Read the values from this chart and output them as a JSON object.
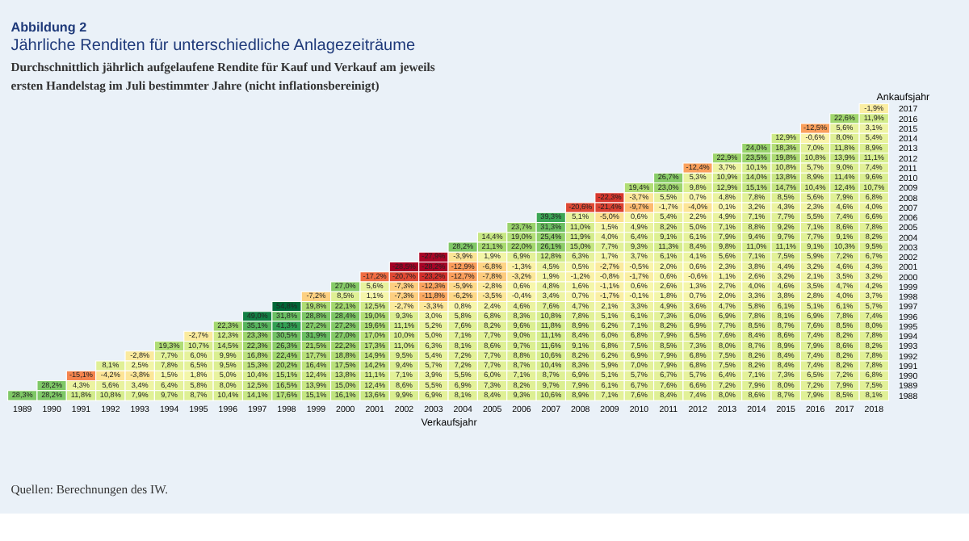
{
  "chart_data": {
    "type": "heatmap",
    "title": "Abbildung 2",
    "subtitle": "Jährliche Renditen für unterschiedliche Anlagezeiträume",
    "xlabel": "Verkaufsjahr",
    "ylabel": "Ankaufsjahr",
    "annotations": [
      "Durchschnittlich jährlich aufgelaufene Rendite für Kauf und Verkauf am jeweils",
      "ersten Handelstag im Juli bestimmter Jahre (nicht inflationsbereinigt)",
      "Quellen: Berechnungen des IW."
    ],
    "categories": [
      "1989",
      "1990",
      "1991",
      "1992",
      "1993",
      "1994",
      "1995",
      "1996",
      "1997",
      "1998",
      "1999",
      "2000",
      "2001",
      "2002",
      "2003",
      "2004",
      "2005",
      "2006",
      "2007",
      "2008",
      "2009",
      "2010",
      "2011",
      "2012",
      "2013",
      "2014",
      "2015",
      "2016",
      "2017",
      "2018"
    ],
    "y_categories": [
      "2017",
      "2016",
      "2015",
      "2014",
      "2013",
      "2012",
      "2011",
      "2010",
      "2009",
      "2008",
      "2007",
      "2006",
      "2005",
      "2004",
      "2003",
      "2002",
      "2001",
      "2000",
      "1999",
      "1998",
      "1997",
      "1996",
      "1995",
      "1994",
      "1993",
      "1992",
      "1991",
      "1990",
      "1989",
      "1988"
    ],
    "cells": [
      [
        null,
        null,
        null,
        null,
        null,
        null,
        null,
        null,
        null,
        null,
        null,
        null,
        null,
        null,
        null,
        null,
        null,
        null,
        null,
        null,
        null,
        null,
        null,
        null,
        null,
        null,
        null,
        null,
        null,
        -1.9
      ],
      [
        null,
        null,
        null,
        null,
        null,
        null,
        null,
        null,
        null,
        null,
        null,
        null,
        null,
        null,
        null,
        null,
        null,
        null,
        null,
        null,
        null,
        null,
        null,
        null,
        null,
        null,
        null,
        null,
        22.6,
        11.9
      ],
      [
        null,
        null,
        null,
        null,
        null,
        null,
        null,
        null,
        null,
        null,
        null,
        null,
        null,
        null,
        null,
        null,
        null,
        null,
        null,
        null,
        null,
        null,
        null,
        null,
        null,
        null,
        null,
        -12.5,
        5.6,
        3.1
      ],
      [
        null,
        null,
        null,
        null,
        null,
        null,
        null,
        null,
        null,
        null,
        null,
        null,
        null,
        null,
        null,
        null,
        null,
        null,
        null,
        null,
        null,
        null,
        null,
        null,
        null,
        null,
        12.9,
        -0.6,
        8.0,
        5.4
      ],
      [
        null,
        null,
        null,
        null,
        null,
        null,
        null,
        null,
        null,
        null,
        null,
        null,
        null,
        null,
        null,
        null,
        null,
        null,
        null,
        null,
        null,
        null,
        null,
        null,
        null,
        24.0,
        18.3,
        7.0,
        11.8,
        8.9
      ],
      [
        null,
        null,
        null,
        null,
        null,
        null,
        null,
        null,
        null,
        null,
        null,
        null,
        null,
        null,
        null,
        null,
        null,
        null,
        null,
        null,
        null,
        null,
        null,
        null,
        22.9,
        23.5,
        19.8,
        10.8,
        13.9,
        11.1
      ],
      [
        null,
        null,
        null,
        null,
        null,
        null,
        null,
        null,
        null,
        null,
        null,
        null,
        null,
        null,
        null,
        null,
        null,
        null,
        null,
        null,
        null,
        null,
        null,
        -12.4,
        3.7,
        10.1,
        10.8,
        5.7,
        9.0,
        7.4
      ],
      [
        null,
        null,
        null,
        null,
        null,
        null,
        null,
        null,
        null,
        null,
        null,
        null,
        null,
        null,
        null,
        null,
        null,
        null,
        null,
        null,
        null,
        null,
        26.7,
        5.3,
        10.9,
        14.0,
        13.8,
        8.9,
        11.4,
        9.6
      ],
      [
        null,
        null,
        null,
        null,
        null,
        null,
        null,
        null,
        null,
        null,
        null,
        null,
        null,
        null,
        null,
        null,
        null,
        null,
        null,
        null,
        null,
        19.4,
        23.0,
        9.8,
        12.9,
        15.1,
        14.7,
        10.4,
        12.4,
        10.7
      ],
      [
        null,
        null,
        null,
        null,
        null,
        null,
        null,
        null,
        null,
        null,
        null,
        null,
        null,
        null,
        null,
        null,
        null,
        null,
        null,
        null,
        -22.3,
        -3.7,
        5.5,
        0.7,
        4.8,
        7.8,
        8.5,
        5.6,
        7.9,
        6.8
      ],
      [
        null,
        null,
        null,
        null,
        null,
        null,
        null,
        null,
        null,
        null,
        null,
        null,
        null,
        null,
        null,
        null,
        null,
        null,
        null,
        -20.6,
        -21.4,
        -9.7,
        -1.7,
        -4.0,
        0.1,
        3.2,
        4.3,
        2.3,
        4.6,
        4.0
      ],
      [
        null,
        null,
        null,
        null,
        null,
        null,
        null,
        null,
        null,
        null,
        null,
        null,
        null,
        null,
        null,
        null,
        null,
        null,
        39.3,
        5.1,
        -5.0,
        0.6,
        5.4,
        2.2,
        4.9,
        7.1,
        7.7,
        5.5,
        7.4,
        6.6
      ],
      [
        null,
        null,
        null,
        null,
        null,
        null,
        null,
        null,
        null,
        null,
        null,
        null,
        null,
        null,
        null,
        null,
        null,
        23.7,
        31.3,
        11.0,
        1.5,
        4.9,
        8.2,
        5.0,
        7.1,
        8.8,
        9.2,
        7.1,
        8.6,
        7.8
      ],
      [
        null,
        null,
        null,
        null,
        null,
        null,
        null,
        null,
        null,
        null,
        null,
        null,
        null,
        null,
        null,
        null,
        14.4,
        19.0,
        25.4,
        11.9,
        4.0,
        6.4,
        9.1,
        6.1,
        7.9,
        9.4,
        9.7,
        7.7,
        9.1,
        8.2
      ],
      [
        null,
        null,
        null,
        null,
        null,
        null,
        null,
        null,
        null,
        null,
        null,
        null,
        null,
        null,
        null,
        28.2,
        21.1,
        22.0,
        26.1,
        15.0,
        7.7,
        9.3,
        11.3,
        8.4,
        9.8,
        11.0,
        11.1,
        9.1,
        10.3,
        9.5
      ],
      [
        null,
        null,
        null,
        null,
        null,
        null,
        null,
        null,
        null,
        null,
        null,
        null,
        null,
        null,
        -27.9,
        -3.9,
        1.9,
        6.9,
        12.8,
        6.3,
        1.7,
        3.7,
        6.1,
        4.1,
        5.6,
        7.1,
        7.5,
        5.9,
        7.2,
        6.7
      ],
      [
        null,
        null,
        null,
        null,
        null,
        null,
        null,
        null,
        null,
        null,
        null,
        null,
        null,
        -28.5,
        -28.2,
        -12.9,
        -6.8,
        -1.3,
        4.5,
        0.5,
        -2.7,
        -0.5,
        2.0,
        0.6,
        2.3,
        3.8,
        4.4,
        3.2,
        4.6,
        4.3
      ],
      [
        null,
        null,
        null,
        null,
        null,
        null,
        null,
        null,
        null,
        null,
        null,
        null,
        -17.2,
        -20.7,
        -23.2,
        -12.7,
        -7.8,
        -3.2,
        1.9,
        -1.2,
        -0.8,
        -1.7,
        0.6,
        -0.6,
        1.1,
        2.6,
        3.2,
        2.1,
        3.5,
        3.2
      ],
      [
        null,
        null,
        null,
        null,
        null,
        null,
        null,
        null,
        null,
        null,
        null,
        27.0,
        5.6,
        -7.3,
        -12.3,
        -5.9,
        -2.8,
        0.6,
        4.8,
        1.6,
        -1.1,
        0.6,
        2.6,
        1.3,
        2.7,
        4.0,
        4.6,
        3.5,
        4.7,
        4.2
      ],
      [
        null,
        null,
        null,
        null,
        null,
        null,
        null,
        null,
        null,
        null,
        -7.2,
        8.5,
        1.1,
        -7.3,
        -11.8,
        -6.2,
        -3.5,
        -0.4,
        3.4,
        0.7,
        -1.7,
        -0.1,
        1.8,
        0.7,
        2.0,
        3.3,
        3.8,
        2.8,
        4.0,
        3.7
      ],
      [
        null,
        null,
        null,
        null,
        null,
        null,
        null,
        null,
        null,
        54.8,
        19.8,
        22.1,
        12.5,
        -2.7,
        -3.3,
        0.8,
        2.4,
        4.6,
        7.6,
        4.7,
        2.1,
        3.3,
        4.9,
        3.6,
        4.7,
        5.8,
        6.1,
        5.1,
        6.1,
        5.7
      ],
      [
        null,
        null,
        null,
        null,
        null,
        null,
        null,
        null,
        49.0,
        31.8,
        28.8,
        28.4,
        19.0,
        9.3,
        3.0,
        5.8,
        6.8,
        8.3,
        10.8,
        7.8,
        5.1,
        6.1,
        7.3,
        6.0,
        6.9,
        7.8,
        8.1,
        6.9,
        7.8,
        7.4
      ],
      [
        null,
        null,
        null,
        null,
        null,
        null,
        null,
        22.3,
        35.1,
        41.3,
        27.2,
        27.2,
        19.6,
        11.1,
        5.2,
        7.6,
        8.2,
        9.6,
        11.8,
        8.9,
        6.2,
        7.1,
        8.2,
        6.9,
        7.7,
        8.5,
        8.7,
        7.6,
        8.5,
        8.0
      ],
      [
        null,
        null,
        null,
        null,
        null,
        null,
        -2.7,
        12.3,
        23.3,
        30.5,
        31.9,
        27.0,
        17.0,
        10.0,
        5.0,
        7.1,
        7.7,
        9.0,
        11.1,
        8.4,
        6.0,
        6.8,
        7.9,
        6.5,
        7.6,
        8.4,
        8.6,
        7.4,
        8.2,
        7.8
      ],
      [
        null,
        null,
        null,
        null,
        null,
        19.3,
        10.7,
        14.5,
        22.3,
        26.3,
        21.5,
        22.2,
        17.3,
        11.0,
        6.3,
        8.1,
        8.6,
        9.7,
        11.6,
        9.1,
        6.8,
        7.5,
        8.5,
        7.3,
        8.0,
        8.7,
        8.9,
        7.9,
        8.6,
        8.2
      ],
      [
        null,
        null,
        null,
        null,
        -2.8,
        7.7,
        6.0,
        9.9,
        16.8,
        22.4,
        17.7,
        18.8,
        14.9,
        9.5,
        5.4,
        7.2,
        7.7,
        8.8,
        10.6,
        8.2,
        6.2,
        6.9,
        7.9,
        6.8,
        7.5,
        8.2,
        8.4,
        7.4,
        8.2,
        7.8
      ],
      [
        null,
        null,
        null,
        8.1,
        2.5,
        7.8,
        6.5,
        9.5,
        15.3,
        20.2,
        16.4,
        17.5,
        14.2,
        9.4,
        5.7,
        7.2,
        7.7,
        8.7,
        10.4,
        8.3,
        5.9,
        7.0,
        7.9,
        6.8,
        7.5,
        8.2,
        8.4,
        7.4,
        8.2,
        7.8
      ],
      [
        null,
        null,
        -15.1,
        -4.2,
        -3.8,
        1.5,
        1.8,
        5.0,
        10.4,
        15.1,
        12.4,
        13.8,
        11.1,
        7.1,
        3.9,
        5.5,
        6.0,
        7.1,
        8.7,
        6.9,
        5.1,
        5.7,
        6.7,
        5.7,
        6.4,
        7.1,
        7.3,
        6.5,
        7.2,
        6.8
      ],
      [
        null,
        28.2,
        4.3,
        5.6,
        3.4,
        6.4,
        5.8,
        8.0,
        12.5,
        16.5,
        13.9,
        15.0,
        12.4,
        8.6,
        5.5,
        6.9,
        7.3,
        8.2,
        9.7,
        7.9,
        6.1,
        6.7,
        7.6,
        6.6,
        7.2,
        7.9,
        8.0,
        7.2,
        7.9,
        7.5
      ],
      [
        28.3,
        28.2,
        11.8,
        10.8,
        7.9,
        9.7,
        8.7,
        10.4,
        14.1,
        17.6,
        15.1,
        16.1,
        13.6,
        9.9,
        6.9,
        8.1,
        8.4,
        9.3,
        10.6,
        8.9,
        7.1,
        7.6,
        8.4,
        7.4,
        8.0,
        8.6,
        8.7,
        7.9,
        8.5,
        8.1
      ]
    ],
    "cell_labels": [
      [
        null,
        null,
        null,
        null,
        null,
        null,
        null,
        null,
        null,
        null,
        null,
        null,
        null,
        null,
        null,
        null,
        null,
        null,
        null,
        null,
        null,
        null,
        null,
        null,
        null,
        null,
        null,
        null,
        null,
        "-1,9%"
      ],
      [
        null,
        null,
        null,
        null,
        null,
        null,
        null,
        null,
        null,
        null,
        null,
        null,
        null,
        null,
        null,
        null,
        null,
        null,
        null,
        null,
        null,
        null,
        null,
        null,
        null,
        null,
        null,
        null,
        "22,6%",
        "11,9%"
      ],
      [
        null,
        null,
        null,
        null,
        null,
        null,
        null,
        null,
        null,
        null,
        null,
        null,
        null,
        null,
        null,
        null,
        null,
        null,
        null,
        null,
        null,
        null,
        null,
        null,
        null,
        null,
        null,
        "-12,5%",
        "5,6%",
        "3,1%"
      ],
      [
        null,
        null,
        null,
        null,
        null,
        null,
        null,
        null,
        null,
        null,
        null,
        null,
        null,
        null,
        null,
        null,
        null,
        null,
        null,
        null,
        null,
        null,
        null,
        null,
        null,
        null,
        "12,9%",
        "-0,6%",
        "8,0%",
        "5,4%"
      ],
      [
        null,
        null,
        null,
        null,
        null,
        null,
        null,
        null,
        null,
        null,
        null,
        null,
        null,
        null,
        null,
        null,
        null,
        null,
        null,
        null,
        null,
        null,
        null,
        null,
        null,
        "24,0%",
        "18,3%",
        "7,0%",
        "11,8%",
        "8,9%"
      ],
      [
        null,
        null,
        null,
        null,
        null,
        null,
        null,
        null,
        null,
        null,
        null,
        null,
        null,
        null,
        null,
        null,
        null,
        null,
        null,
        null,
        null,
        null,
        null,
        null,
        "22,9%",
        "23,5%",
        "19,8%",
        "10,8%",
        "13,9%",
        "11,1%"
      ],
      [
        null,
        null,
        null,
        null,
        null,
        null,
        null,
        null,
        null,
        null,
        null,
        null,
        null,
        null,
        null,
        null,
        null,
        null,
        null,
        null,
        null,
        null,
        null,
        "-12,4%",
        "3,7%",
        "10,1%",
        "10,8%",
        "5,7%",
        "9,0%",
        "7,4%"
      ],
      [
        null,
        null,
        null,
        null,
        null,
        null,
        null,
        null,
        null,
        null,
        null,
        null,
        null,
        null,
        null,
        null,
        null,
        null,
        null,
        null,
        null,
        null,
        "26,7%",
        "5,3%",
        "10,9%",
        "14,0%",
        "13,8%",
        "8,9%",
        "11,4%",
        "9,6%"
      ],
      [
        null,
        null,
        null,
        null,
        null,
        null,
        null,
        null,
        null,
        null,
        null,
        null,
        null,
        null,
        null,
        null,
        null,
        null,
        null,
        null,
        null,
        "19,4%",
        "23,0%",
        "9,8%",
        "12,9%",
        "15,1%",
        "14,7%",
        "10,4%",
        "12,4%",
        "10,7%"
      ],
      [
        null,
        null,
        null,
        null,
        null,
        null,
        null,
        null,
        null,
        null,
        null,
        null,
        null,
        null,
        null,
        null,
        null,
        null,
        null,
        null,
        "-22,3%",
        "-3,7%",
        "5,5%",
        "0,7%",
        "4,8%",
        "7,8%",
        "8,5%",
        "5,6%",
        "7,9%",
        "6,8%"
      ],
      [
        null,
        null,
        null,
        null,
        null,
        null,
        null,
        null,
        null,
        null,
        null,
        null,
        null,
        null,
        null,
        null,
        null,
        null,
        null,
        "-20,6%",
        "-21,4%",
        "-9,7%",
        "-1,7%",
        "-4,0%",
        "0,1%",
        "3,2%",
        "4,3%",
        "2,3%",
        "4,6%",
        "4,0%"
      ],
      [
        null,
        null,
        null,
        null,
        null,
        null,
        null,
        null,
        null,
        null,
        null,
        null,
        null,
        null,
        null,
        null,
        null,
        null,
        "39,3%",
        "5,1%",
        "-5,0%",
        "0,6%",
        "5,4%",
        "2,2%",
        "4,9%",
        "7,1%",
        "7,7%",
        "5,5%",
        "7,4%",
        "6,6%"
      ],
      [
        null,
        null,
        null,
        null,
        null,
        null,
        null,
        null,
        null,
        null,
        null,
        null,
        null,
        null,
        null,
        null,
        null,
        "23,7%",
        "31,3%",
        "11,0%",
        "1,5%",
        "4,9%",
        "8,2%",
        "5,0%",
        "7,1%",
        "8,8%",
        "9,2%",
        "7,1%",
        "8,6%",
        "7,8%"
      ],
      [
        null,
        null,
        null,
        null,
        null,
        null,
        null,
        null,
        null,
        null,
        null,
        null,
        null,
        null,
        null,
        null,
        "14,4%",
        "19,0%",
        "25,4%",
        "11,9%",
        "4,0%",
        "6,4%",
        "9,1%",
        "6,1%",
        "7,9%",
        "9,4%",
        "9,7%",
        "7,7%",
        "9,1%",
        "8,2%"
      ],
      [
        null,
        null,
        null,
        null,
        null,
        null,
        null,
        null,
        null,
        null,
        null,
        null,
        null,
        null,
        null,
        "28,2%",
        "21,1%",
        "22,0%",
        "26,1%",
        "15,0%",
        "7,7%",
        "9,3%",
        "11,3%",
        "8,4%",
        "9,8%",
        "11,0%",
        "11,1%",
        "9,1%",
        "10,3%",
        "9,5%"
      ],
      [
        null,
        null,
        null,
        null,
        null,
        null,
        null,
        null,
        null,
        null,
        null,
        null,
        null,
        null,
        "-27,9%",
        "-3,9%",
        "1,9%",
        "6,9%",
        "12,8%",
        "6,3%",
        "1,7%",
        "3,7%",
        "6,1%",
        "4,1%",
        "5,6%",
        "7,1%",
        "7,5%",
        "5,9%",
        "7,2%",
        "6,7%"
      ],
      [
        null,
        null,
        null,
        null,
        null,
        null,
        null,
        null,
        null,
        null,
        null,
        null,
        null,
        "-28,5%",
        "-28,2%",
        "-12,9%",
        "-6,8%",
        "-1,3%",
        "4,5%",
        "0,5%",
        "-2,7%",
        "-0,5%",
        "2,0%",
        "0,6%",
        "2,3%",
        "3,8%",
        "4,4%",
        "3,2%",
        "4,6%",
        "4,3%"
      ],
      [
        null,
        null,
        null,
        null,
        null,
        null,
        null,
        null,
        null,
        null,
        null,
        null,
        "-17,2%",
        "-20,7%",
        "-23,2%",
        "-12,7%",
        "-7,8%",
        "-3,2%",
        "1,9%",
        "-1,2%",
        "-0,8%",
        "-1,7%",
        "0,6%",
        "-0,6%",
        "1,1%",
        "2,6%",
        "3,2%",
        "2,1%",
        "3,5%",
        "3,2%"
      ],
      [
        null,
        null,
        null,
        null,
        null,
        null,
        null,
        null,
        null,
        null,
        null,
        "27,0%",
        "5,6%",
        "-7,3%",
        "-12,3%",
        "-5,9%",
        "-2,8%",
        "0,6%",
        "4,8%",
        "1,6%",
        "-1,1%",
        "0,6%",
        "2,6%",
        "1,3%",
        "2,7%",
        "4,0%",
        "4,6%",
        "3,5%",
        "4,7%",
        "4,2%"
      ],
      [
        null,
        null,
        null,
        null,
        null,
        null,
        null,
        null,
        null,
        null,
        "-7,2%",
        "8,5%",
        "1,1%",
        "-7,3%",
        "-11,8%",
        "-6,2%",
        "-3,5%",
        "-0,4%",
        "3,4%",
        "0,7%",
        "-1,7%",
        "-0,1%",
        "1,8%",
        "0,7%",
        "2,0%",
        "3,3%",
        "3,8%",
        "2,8%",
        "4,0%",
        "3,7%"
      ],
      [
        null,
        null,
        null,
        null,
        null,
        null,
        null,
        null,
        null,
        "54,8%",
        "19,8%",
        "22,1%",
        "12,5%",
        "-2,7%",
        "-3,3%",
        "0,8%",
        "2,4%",
        "4,6%",
        "7,6%",
        "4,7%",
        "2,1%",
        "3,3%",
        "4,9%",
        "3,6%",
        "4,7%",
        "5,8%",
        "6,1%",
        "5,1%",
        "6,1%",
        "5,7%"
      ],
      [
        null,
        null,
        null,
        null,
        null,
        null,
        null,
        null,
        "49,0%",
        "31,8%",
        "28,8%",
        "28,4%",
        "19,0%",
        "9,3%",
        "3,0%",
        "5,8%",
        "6,8%",
        "8,3%",
        "10,8%",
        "7,8%",
        "5,1%",
        "6,1%",
        "7,3%",
        "6,0%",
        "6,9%",
        "7,8%",
        "8,1%",
        "6,9%",
        "7,8%",
        "7,4%"
      ],
      [
        null,
        null,
        null,
        null,
        null,
        null,
        null,
        "22,3%",
        "35,1%",
        "41,3%",
        "27,2%",
        "27,2%",
        "19,6%",
        "11,1%",
        "5,2%",
        "7,6%",
        "8,2%",
        "9,6%",
        "11,8%",
        "8,9%",
        "6,2%",
        "7,1%",
        "8,2%",
        "6,9%",
        "7,7%",
        "8,5%",
        "8,7%",
        "7,6%",
        "8,5%",
        "8,0%"
      ],
      [
        null,
        null,
        null,
        null,
        null,
        null,
        "-2,7%",
        "12,3%",
        "23,3%",
        "30,5%",
        "31,9%",
        "27,0%",
        "17,0%",
        "10,0%",
        "5,0%",
        "7,1%",
        "7,7%",
        "9,0%",
        "11,1%",
        "8,4%",
        "6,0%",
        "6,8%",
        "7,9%",
        "6,5%",
        "7,6%",
        "8,4%",
        "8,6%",
        "7,4%",
        "8,2%",
        "7,8%"
      ],
      [
        null,
        null,
        null,
        null,
        null,
        "19,3%",
        "10,7%",
        "14,5%",
        "22,3%",
        "26,3%",
        "21,5%",
        "22,2%",
        "17,3%",
        "11,0%",
        "6,3%",
        "8,1%",
        "8,6%",
        "9,7%",
        "11,6%",
        "9,1%",
        "6,8%",
        "7,5%",
        "8,5%",
        "7,3%",
        "8,0%",
        "8,7%",
        "8,9%",
        "7,9%",
        "8,6%",
        "8,2%"
      ],
      [
        null,
        null,
        null,
        null,
        "-2,8%",
        "7,7%",
        "6,0%",
        "9,9%",
        "16,8%",
        "22,4%",
        "17,7%",
        "18,8%",
        "14,9%",
        "9,5%",
        "5,4%",
        "7,2%",
        "7,7%",
        "8,8%",
        "10,6%",
        "8,2%",
        "6,2%",
        "6,9%",
        "7,9%",
        "6,8%",
        "7,5%",
        "8,2%",
        "8,4%",
        "7,4%",
        "8,2%",
        "7,8%"
      ],
      [
        null,
        null,
        null,
        "8,1%",
        "2,5%",
        "7,8%",
        "6,5%",
        "9,5%",
        "15,3%",
        "20,2%",
        "16,4%",
        "17,5%",
        "14,2%",
        "9,4%",
        "5,7%",
        "7,2%",
        "7,7%",
        "8,7%",
        "10,4%",
        "8,3%",
        "5,9%",
        "7,0%",
        "7,9%",
        "6,8%",
        "7,5%",
        "8,2%",
        "8,4%",
        "7,4%",
        "8,2%",
        "7,8%"
      ],
      [
        null,
        null,
        "-15,1%",
        "-4,2%",
        "-3,8%",
        "1,5%",
        "1,8%",
        "5,0%",
        "10,4%",
        "15,1%",
        "12,4%",
        "13,8%",
        "11,1%",
        "7,1%",
        "3,9%",
        "5,5%",
        "6,0%",
        "7,1%",
        "8,7%",
        "6,9%",
        "5,1%",
        "5,7%",
        "6,7%",
        "5,7%",
        "6,4%",
        "7,1%",
        "7,3%",
        "6,5%",
        "7,2%",
        "6,8%"
      ],
      [
        null,
        "28,2%",
        "4,3%",
        "5,6%",
        "3,4%",
        "6,4%",
        "5,8%",
        "8,0%",
        "12,5%",
        "16,5%",
        "13,9%",
        "15,0%",
        "12,4%",
        "8,6%",
        "5,5%",
        "6,9%",
        "7,3%",
        "8,2%",
        "9,7%",
        "7,9%",
        "6,1%",
        "6,7%",
        "7,6%",
        "6,6%",
        "7,2%",
        "7,9%",
        "8,0%",
        "7,2%",
        "7,9%",
        "7,5%"
      ],
      [
        "28,3%",
        "28,2%",
        "11,8%",
        "10,8%",
        "7,9%",
        "9,7%",
        "8,7%",
        "10,4%",
        "14,1%",
        "17,6%",
        "15,1%",
        "16,1%",
        "13,6%",
        "9,9%",
        "6,9%",
        "8,1%",
        "8,4%",
        "9,3%",
        "10,6%",
        "8,9%",
        "7,1%",
        "7,6%",
        "8,4%",
        "7,4%",
        "8,0%",
        "8,6%",
        "8,7%",
        "7,9%",
        "8,5%",
        "8,1%"
      ]
    ]
  }
}
